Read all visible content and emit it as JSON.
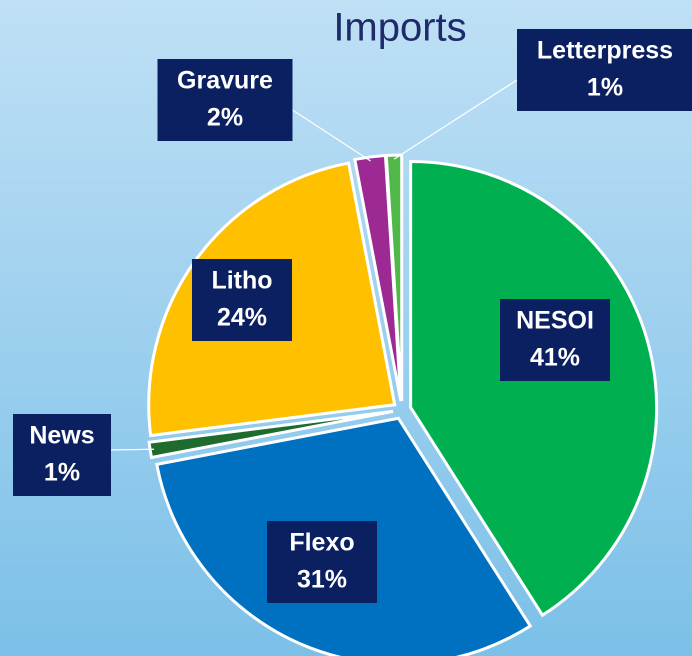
{
  "chart_data": {
    "type": "pie",
    "title": "Imports",
    "categories": [
      "NESOI",
      "Flexo",
      "News",
      "Litho",
      "Gravure",
      "Letterpress"
    ],
    "values": [
      41,
      31,
      1,
      24,
      2,
      1
    ],
    "value_labels": [
      "41%",
      "31%",
      "1%",
      "24%",
      "2%",
      "1%"
    ],
    "colors": [
      "#00b050",
      "#0070c0",
      "#1e6b2e",
      "#ffc000",
      "#9c2a92",
      "#4fb848"
    ]
  }
}
